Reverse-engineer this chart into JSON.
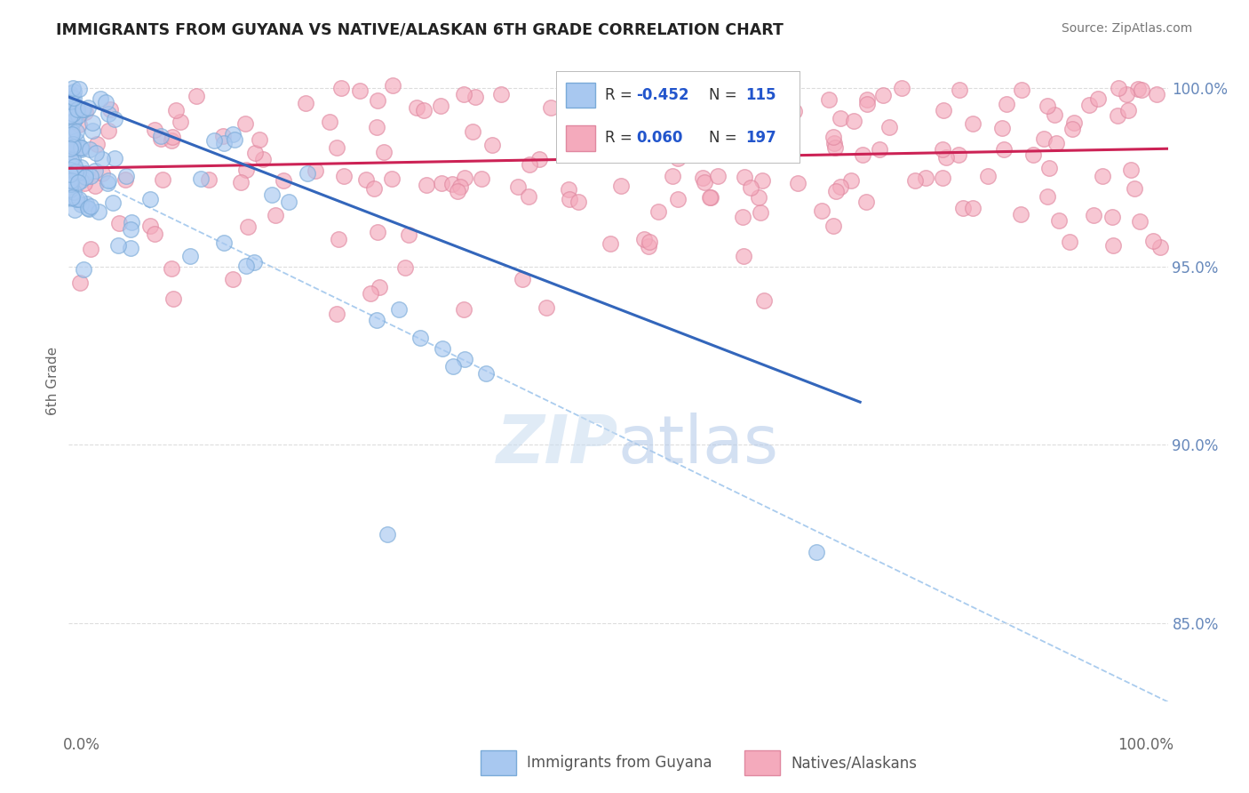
{
  "title": "IMMIGRANTS FROM GUYANA VS NATIVE/ALASKAN 6TH GRADE CORRELATION CHART",
  "source_text": "Source: ZipAtlas.com",
  "ylabel": "6th Grade",
  "ytick_labels": [
    "85.0%",
    "90.0%",
    "95.0%",
    "100.0%"
  ],
  "ytick_values": [
    0.85,
    0.9,
    0.95,
    1.0
  ],
  "xmin": 0.0,
  "xmax": 1.0,
  "ymin": 0.828,
  "ymax": 1.008,
  "legend_r_blue_label": "R = ",
  "legend_r_blue_val": "-0.452",
  "legend_n_blue_label": "N = ",
  "legend_n_blue_val": "115",
  "legend_r_pink_label": "R =  ",
  "legend_r_pink_val": "0.060",
  "legend_n_pink_label": "N = ",
  "legend_n_pink_val": "197",
  "blue_fill": "#A8C8F0",
  "blue_edge": "#7AAAD8",
  "pink_fill": "#F4AABC",
  "pink_edge": "#E088A0",
  "blue_line_color": "#3366BB",
  "pink_line_color": "#CC2255",
  "dashed_line_color": "#AACCEE",
  "grid_color": "#DDDDDD",
  "background_color": "#FFFFFF",
  "title_color": "#222222",
  "source_color": "#777777",
  "axis_label_color": "#666666",
  "right_tick_color": "#6688BB",
  "watermark_color": "#C8DCF0",
  "scatter_size": 160,
  "scatter_alpha": 0.65,
  "blue_line_x0": 0.0,
  "blue_line_x1": 0.72,
  "blue_line_y0": 0.9975,
  "blue_line_y1": 0.912,
  "pink_line_x0": 0.0,
  "pink_line_x1": 1.0,
  "pink_line_y0": 0.9775,
  "pink_line_y1": 0.983,
  "dash_line_x0": 0.0,
  "dash_line_x1": 1.0,
  "dash_line_y0": 0.9775,
  "dash_line_y1": 0.828
}
